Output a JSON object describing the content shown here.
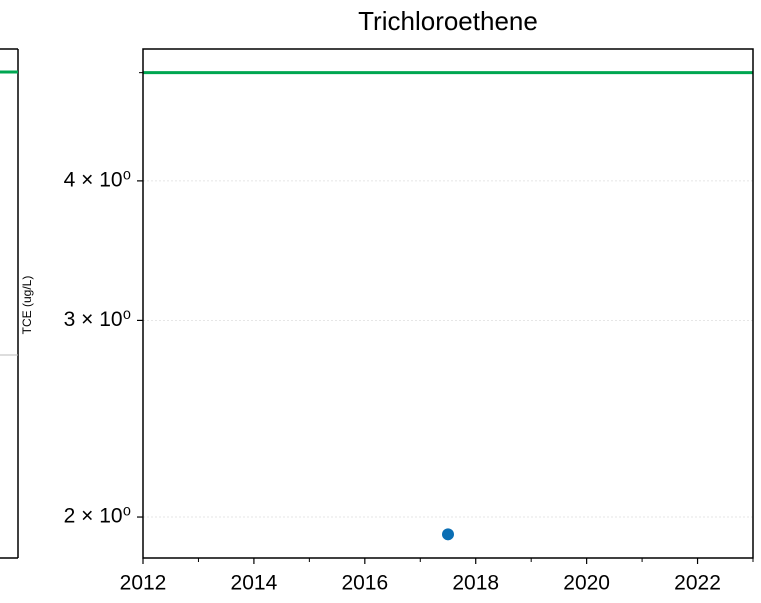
{
  "chart_data": {
    "type": "scatter",
    "title": "Trichloroethene",
    "y_label": "TCE (ug/L)",
    "x": [
      2017.5
    ],
    "series": [
      {
        "color": "#0a6eb4",
        "values": [
          1.93
        ]
      }
    ],
    "hlines": [
      {
        "value": 5,
        "color": "#00a651"
      }
    ],
    "xlim": [
      2012,
      2023
    ],
    "xticks": [
      2012,
      2014,
      2016,
      2018,
      2020,
      2022
    ],
    "xminor": [
      2013,
      2015,
      2017,
      2019,
      2021,
      2023
    ],
    "ylim": [
      1.838,
      5.25
    ],
    "log_y": true,
    "yticks": [
      {
        "value": 2,
        "label": "2 × 10⁰"
      },
      {
        "value": 3,
        "label": "3 × 10⁰"
      },
      {
        "value": 4,
        "label": "4 × 10⁰"
      }
    ],
    "yminor": [
      5
    ],
    "grid": true
  }
}
